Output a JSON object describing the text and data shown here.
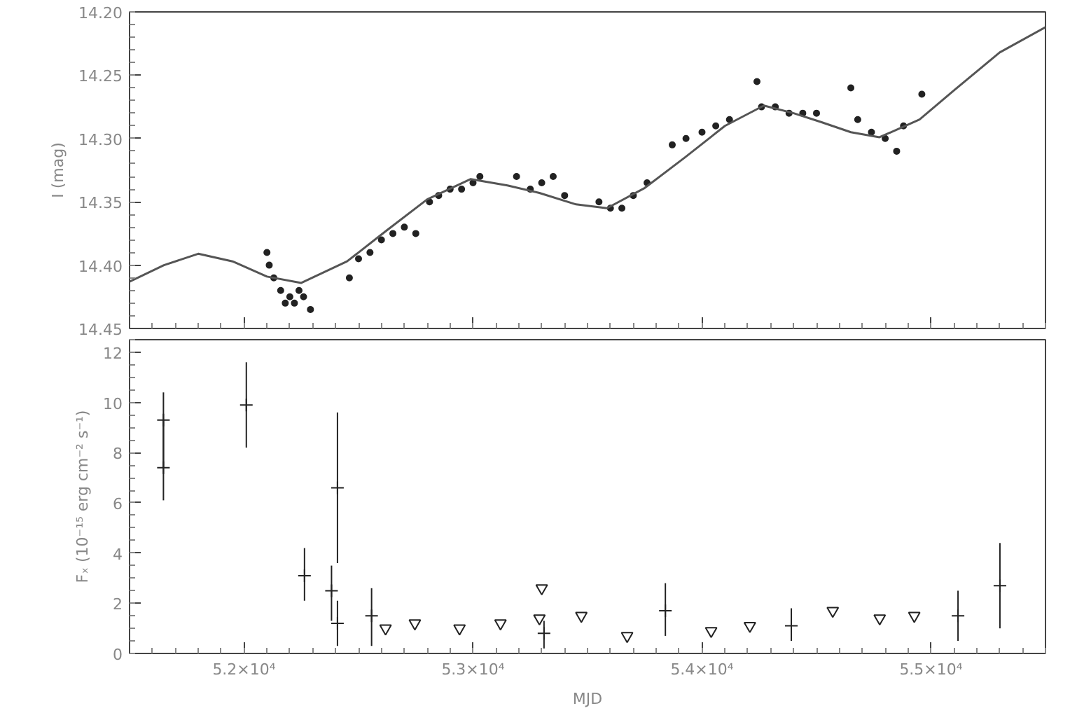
{
  "chart_data": [
    {
      "type": "scatter",
      "ylabel": "I (mag)",
      "xlim": [
        51500,
        55500
      ],
      "tick_labels": "y",
      "ylim": [
        14.45,
        14.2
      ],
      "yticks": [
        {
          "value": 14.2,
          "label": "14.20"
        },
        {
          "value": 14.25,
          "label": "14.25"
        },
        {
          "value": 14.3,
          "label": "14.30"
        },
        {
          "value": 14.35,
          "label": "14.35"
        },
        {
          "value": 14.4,
          "label": "14.40"
        },
        {
          "value": 14.45,
          "label": "14.45"
        }
      ],
      "grid": false,
      "series": [
        {
          "marker": "circle",
          "color": "#222222",
          "x": [
            52100,
            52110,
            52130,
            52160,
            52180,
            52200,
            52220,
            52240,
            52260,
            52290,
            52460,
            52500,
            52550,
            52600,
            52650,
            52700,
            52750,
            52810,
            52850,
            52900,
            52950,
            53000,
            53030,
            53190,
            53250,
            53300,
            53350,
            53400,
            53550,
            53600,
            53650,
            53700,
            53760,
            53870,
            53930,
            54000,
            54060,
            54120,
            54240,
            54260,
            54320,
            54380,
            54440,
            54500,
            54650,
            54680,
            54740,
            54800,
            54850,
            54880,
            54960
          ],
          "values": [
            14.39,
            14.4,
            14.41,
            14.42,
            14.43,
            14.425,
            14.43,
            14.42,
            14.425,
            14.435,
            14.41,
            14.395,
            14.39,
            14.38,
            14.375,
            14.37,
            14.375,
            14.35,
            14.345,
            14.34,
            14.34,
            14.335,
            14.33,
            14.33,
            14.34,
            14.335,
            14.33,
            14.345,
            14.35,
            14.355,
            14.355,
            14.345,
            14.335,
            14.305,
            14.3,
            14.295,
            14.29,
            14.285,
            14.255,
            14.275,
            14.275,
            14.28,
            14.28,
            14.28,
            14.26,
            14.285,
            14.295,
            14.3,
            14.31,
            14.29,
            14.265
          ]
        },
        {
          "type": "line",
          "marker": "none",
          "line_style": "solid",
          "color": "#555555",
          "x": [
            51500,
            51650,
            51800,
            51950,
            52100,
            52250,
            52450,
            52620,
            52800,
            52990,
            53150,
            53290,
            53450,
            53585,
            53750,
            53925,
            54100,
            54270,
            54400,
            54520,
            54650,
            54775,
            54950,
            55100,
            55300,
            55500
          ],
          "values": [
            14.413,
            14.4,
            14.391,
            14.397,
            14.409,
            14.414,
            14.397,
            14.373,
            14.348,
            14.332,
            14.337,
            14.343,
            14.352,
            14.355,
            14.339,
            14.315,
            14.29,
            14.274,
            14.28,
            14.287,
            14.295,
            14.299,
            14.285,
            14.262,
            14.232,
            14.212
          ]
        }
      ]
    },
    {
      "type": "scatter",
      "xlabel": "MJD",
      "ylabel": "Fₓ (10⁻¹⁵ erg cm⁻² s⁻¹)",
      "xlim": [
        51500,
        55500
      ],
      "xticks": [
        {
          "value": 52000,
          "label": "5.2×10⁴"
        },
        {
          "value": 53000,
          "label": "5.3×10⁴"
        },
        {
          "value": 54000,
          "label": "5.4×10⁴"
        },
        {
          "value": 55000,
          "label": "5.5×10⁴"
        }
      ],
      "ylim": [
        0,
        12.5
      ],
      "yticks": [
        0,
        2,
        4,
        6,
        8,
        10,
        12
      ],
      "grid": false,
      "series": [
        {
          "marker": "cross",
          "color": "#222222",
          "x": [
            51648,
            51648,
            52010,
            52264,
            52382,
            52408,
            52408,
            52557,
            53310,
            53840,
            54390,
            55118,
            55301
          ],
          "values": [
            9.3,
            7.4,
            9.9,
            3.1,
            2.5,
            6.6,
            1.2,
            1.5,
            0.8,
            1.7,
            1.1,
            1.5,
            2.7
          ],
          "errors": [
            [
              7.4,
              10.4
            ],
            [
              6.1,
              9.3
            ],
            [
              8.2,
              11.6
            ],
            [
              2.1,
              4.2
            ],
            [
              1.3,
              3.5
            ],
            [
              3.6,
              9.6
            ],
            [
              0.3,
              2.1
            ],
            [
              0.3,
              2.6
            ],
            [
              0.2,
              1.3
            ],
            [
              0.7,
              2.8
            ],
            [
              0.5,
              1.8
            ],
            [
              0.5,
              2.5
            ],
            [
              1.0,
              4.4
            ]
          ]
        },
        {
          "marker": "triangle",
          "color": "#222222",
          "x": [
            52618,
            52746,
            52941,
            53120,
            53290,
            53300,
            53473,
            53673,
            54040,
            54209,
            54571,
            54776,
            54927
          ],
          "values": [
            1.0,
            1.2,
            1.0,
            1.2,
            1.4,
            2.6,
            1.5,
            0.7,
            0.9,
            1.1,
            1.7,
            1.4,
            1.5
          ]
        }
      ]
    }
  ]
}
